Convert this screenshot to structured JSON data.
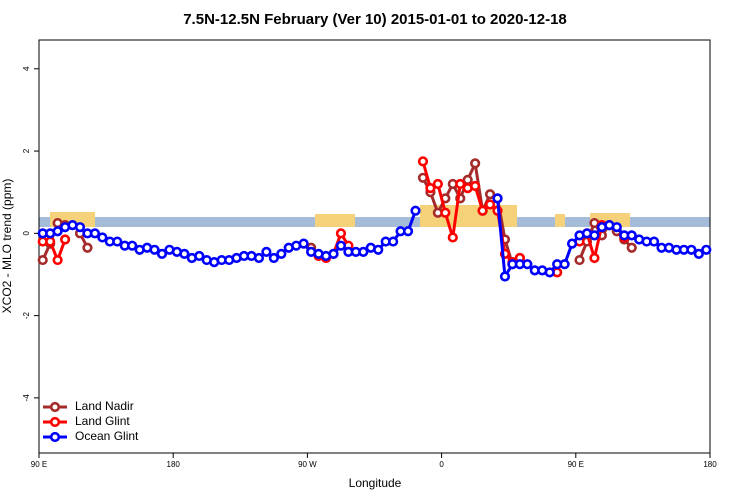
{
  "chart_data": {
    "type": "line",
    "title": "7.5N-12.5N February (Ver 10)   2015-01-01 to 2020-12-18",
    "x_label": "Longitude",
    "y_label": "XCO2 - MLO trend (ppm)",
    "x": [
      92.5,
      97.5,
      102.5,
      107.5,
      112.5,
      117.5,
      122.5,
      127.5,
      132.5,
      137.5,
      142.5,
      147.5,
      152.5,
      157.5,
      162.5,
      167.5,
      172.5,
      177.5,
      182.5,
      187.5,
      192.5,
      197.5,
      202.5,
      207.5,
      212.5,
      217.5,
      222.5,
      227.5,
      232.5,
      237.5,
      242.5,
      247.5,
      252.5,
      257.5,
      262.5,
      267.5,
      272.5,
      277.5,
      282.5,
      287.5,
      292.5,
      297.5,
      302.5,
      307.5,
      312.5,
      317.5,
      322.5,
      327.5,
      332.5,
      337.5,
      342.5,
      347.5,
      352.5,
      357.5,
      362.5,
      367.5,
      372.5,
      377.5,
      382.5,
      387.5,
      392.5,
      397.5,
      402.5,
      407.5,
      412.5,
      417.5,
      422.5,
      427.5,
      432.5,
      437.5,
      442.5,
      447.5,
      452.5,
      457.5,
      462.5,
      467.5,
      472.5,
      477.5,
      482.5,
      487.5,
      492.5,
      497.5,
      502.5,
      507.5,
      512.5,
      517.5,
      522.5,
      527.5,
      532.5,
      537.5
    ],
    "series": [
      {
        "name": "Land Nadir",
        "color": "#a52a2a",
        "values": [
          -0.65,
          -0.25,
          0.25,
          0.2,
          null,
          0,
          -0.35,
          null,
          null,
          null,
          null,
          null,
          null,
          null,
          null,
          null,
          null,
          null,
          null,
          null,
          null,
          null,
          null,
          null,
          null,
          null,
          null,
          null,
          null,
          null,
          null,
          null,
          null,
          null,
          null,
          null,
          -0.35,
          null,
          null,
          null,
          null,
          null,
          null,
          null,
          null,
          null,
          null,
          null,
          null,
          null,
          null,
          1.35,
          1.0,
          0.5,
          0.85,
          1.2,
          0.85,
          1.3,
          1.7,
          0.55,
          0.95,
          0.85,
          -0.15,
          -0.75,
          -0.6,
          null,
          null,
          null,
          null,
          null,
          null,
          null,
          -0.65,
          -0.2,
          0.25,
          -0.05,
          0.2,
          0.05,
          -0.15,
          -0.35,
          null,
          null,
          null,
          null,
          null,
          null,
          null,
          null,
          null,
          null
        ]
      },
      {
        "name": "Land Glint",
        "color": "#ff0000",
        "values": [
          -0.2,
          -0.2,
          -0.65,
          -0.15,
          null,
          null,
          null,
          null,
          null,
          null,
          null,
          null,
          null,
          null,
          null,
          null,
          null,
          null,
          null,
          null,
          null,
          null,
          null,
          null,
          null,
          null,
          null,
          null,
          null,
          null,
          null,
          null,
          null,
          null,
          null,
          null,
          null,
          -0.55,
          -0.6,
          -0.5,
          0,
          -0.3,
          null,
          null,
          null,
          null,
          null,
          null,
          null,
          null,
          null,
          1.75,
          1.1,
          1.2,
          0.5,
          -0.1,
          1.2,
          1.1,
          1.15,
          0.55,
          0.7,
          0.55,
          -0.5,
          -0.7,
          -0.6,
          null,
          null,
          null,
          null,
          -0.95,
          null,
          null,
          -0.2,
          0,
          -0.6,
          0.2,
          0.2,
          null,
          -0.1,
          null,
          null,
          null,
          null,
          null,
          null,
          null,
          null,
          null,
          null,
          null
        ]
      },
      {
        "name": "Ocean Glint",
        "color": "#0000ff",
        "values": [
          0,
          0,
          0.05,
          0.15,
          0.2,
          0.15,
          0,
          0,
          -0.1,
          -0.2,
          -0.2,
          -0.3,
          -0.3,
          -0.4,
          -0.35,
          -0.4,
          -0.5,
          -0.4,
          -0.45,
          -0.5,
          -0.6,
          -0.55,
          -0.65,
          -0.7,
          -0.65,
          -0.65,
          -0.6,
          -0.55,
          -0.55,
          -0.6,
          -0.45,
          -0.6,
          -0.5,
          -0.35,
          -0.3,
          -0.25,
          -0.45,
          -0.5,
          -0.55,
          -0.5,
          -0.3,
          -0.45,
          -0.45,
          -0.45,
          -0.35,
          -0.4,
          -0.2,
          -0.2,
          0.05,
          0.05,
          0.55,
          null,
          null,
          null,
          null,
          null,
          null,
          null,
          null,
          null,
          null,
          0.85,
          -1.05,
          -0.75,
          -0.75,
          -0.75,
          -0.9,
          -0.9,
          -0.95,
          -0.75,
          -0.75,
          -0.25,
          -0.05,
          0,
          -0.05,
          0.15,
          0.2,
          0.15,
          -0.05,
          -0.05,
          -0.15,
          -0.2,
          -0.2,
          -0.35,
          -0.35,
          -0.4,
          -0.4,
          -0.4,
          -0.5,
          -0.4
        ]
      }
    ],
    "xlim": [
      90,
      540
    ],
    "xticks": [
      {
        "value": 90,
        "label": "90 E"
      },
      180,
      {
        "value": 270,
        "label": "90 W"
      },
      {
        "value": 360,
        "label": "0"
      },
      {
        "value": 450,
        "label": "90 E"
      },
      {
        "value": 540,
        "label": "180"
      }
    ],
    "ylim": [
      -5.34,
      4.7
    ],
    "yticks": [
      -4,
      -2,
      0,
      2,
      4
    ],
    "legend": "bottom-left"
  }
}
